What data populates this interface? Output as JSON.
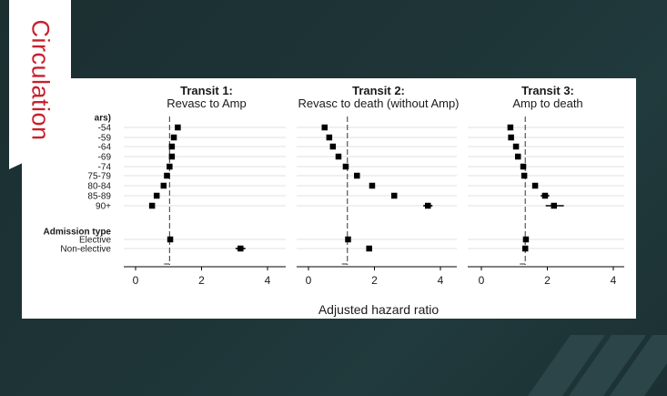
{
  "brand": {
    "journal": "Circulation",
    "accent_color": "#c8202c"
  },
  "chart_data": {
    "type": "forest",
    "xlabel": "Adjusted hazard ratio",
    "xticks": [
      0,
      2,
      4
    ],
    "xlim": [
      -0.3,
      4.4
    ],
    "grid": "horizontal",
    "row_labels": [
      "ars)",
      "-54",
      "-59",
      "-64",
      "-69",
      "-74",
      "75-79",
      "80-84",
      "85-89",
      "90+",
      "Admission type",
      "Elective",
      "Non-elective"
    ],
    "header_rows": [
      "ars)",
      "Admission type"
    ],
    "panels": [
      {
        "title": "Transit 1:",
        "subtitle": "Revasc to Amp",
        "reference": 1.03,
        "points": [
          {
            "row": "-54",
            "hr": 1.28,
            "lo": 1.2,
            "hi": 1.36
          },
          {
            "row": "-59",
            "hr": 1.16,
            "lo": 1.1,
            "hi": 1.22
          },
          {
            "row": "-64",
            "hr": 1.1,
            "lo": 1.05,
            "hi": 1.15
          },
          {
            "row": "-69",
            "hr": 1.1,
            "lo": 1.05,
            "hi": 1.15
          },
          {
            "row": "-74",
            "hr": 1.03,
            "lo": 0.98,
            "hi": 1.08
          },
          {
            "row": "75-79",
            "hr": 0.95,
            "lo": 0.9,
            "hi": 1.0
          },
          {
            "row": "80-84",
            "hr": 0.85,
            "lo": 0.8,
            "hi": 0.9
          },
          {
            "row": "85-89",
            "hr": 0.64,
            "lo": 0.58,
            "hi": 0.7
          },
          {
            "row": "90+",
            "hr": 0.5,
            "lo": 0.45,
            "hi": 0.55
          },
          {
            "row": "Elective",
            "hr": 1.05,
            "lo": 1.0,
            "hi": 1.1
          },
          {
            "row": "Non-elective",
            "hr": 3.18,
            "lo": 3.03,
            "hi": 3.33
          }
        ]
      },
      {
        "title": "Transit 2:",
        "subtitle": "Revasc to death (without Amp)",
        "reference": 1.18,
        "points": [
          {
            "row": "-54",
            "hr": 0.49,
            "lo": 0.46,
            "hi": 0.52
          },
          {
            "row": "-59",
            "hr": 0.63,
            "lo": 0.6,
            "hi": 0.66
          },
          {
            "row": "-64",
            "hr": 0.74,
            "lo": 0.71,
            "hi": 0.77
          },
          {
            "row": "-69",
            "hr": 0.91,
            "lo": 0.88,
            "hi": 0.94
          },
          {
            "row": "-74",
            "hr": 1.13,
            "lo": 1.1,
            "hi": 1.16
          },
          {
            "row": "75-79",
            "hr": 1.47,
            "lo": 1.43,
            "hi": 1.51
          },
          {
            "row": "80-84",
            "hr": 1.93,
            "lo": 1.88,
            "hi": 1.98
          },
          {
            "row": "85-89",
            "hr": 2.6,
            "lo": 2.54,
            "hi": 2.66
          },
          {
            "row": "90+",
            "hr": 3.62,
            "lo": 3.48,
            "hi": 3.76
          },
          {
            "row": "Elective",
            "hr": 1.2,
            "lo": 1.17,
            "hi": 1.23
          },
          {
            "row": "Non-elective",
            "hr": 1.84,
            "lo": 1.8,
            "hi": 1.88
          }
        ]
      },
      {
        "title": "Transit 3:",
        "subtitle": "Amp to death",
        "reference": 1.33,
        "points": [
          {
            "row": "-54",
            "hr": 0.88,
            "lo": 0.84,
            "hi": 0.92
          },
          {
            "row": "-59",
            "hr": 0.9,
            "lo": 0.86,
            "hi": 0.94
          },
          {
            "row": "-64",
            "hr": 1.05,
            "lo": 1.01,
            "hi": 1.09
          },
          {
            "row": "-69",
            "hr": 1.11,
            "lo": 1.07,
            "hi": 1.15
          },
          {
            "row": "-74",
            "hr": 1.27,
            "lo": 1.23,
            "hi": 1.31
          },
          {
            "row": "75-79",
            "hr": 1.3,
            "lo": 1.26,
            "hi": 1.34
          },
          {
            "row": "80-84",
            "hr": 1.63,
            "lo": 1.55,
            "hi": 1.71
          },
          {
            "row": "85-89",
            "hr": 1.93,
            "lo": 1.8,
            "hi": 2.06
          },
          {
            "row": "90+",
            "hr": 2.2,
            "lo": 1.95,
            "hi": 2.5
          },
          {
            "row": "Elective",
            "hr": 1.35,
            "lo": 1.31,
            "hi": 1.39
          },
          {
            "row": "Non-elective",
            "hr": 1.33,
            "lo": 1.29,
            "hi": 1.37
          }
        ]
      }
    ]
  }
}
